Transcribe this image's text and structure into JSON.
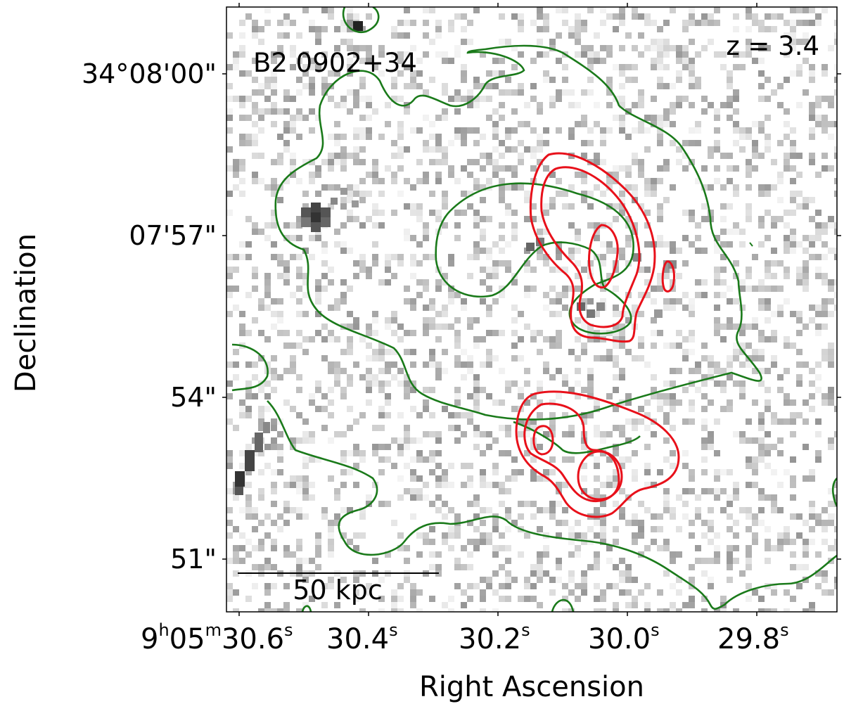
{
  "figure": {
    "object_label": "B2 0902+34",
    "redshift_label": "z = 3.4",
    "scalebar_label": "50 kpc",
    "xlabel": "Right Ascension",
    "ylabel": "Declination",
    "x_ticks": [
      {
        "h": "9",
        "hs": "h",
        "m": "05",
        "ms": "m",
        "s": "30.6",
        "ss": "s"
      },
      {
        "s": "30.4",
        "ss": "s"
      },
      {
        "s": "30.2",
        "ss": "s"
      },
      {
        "s": "30.0",
        "ss": "s"
      },
      {
        "s": "29.8",
        "ss": "s"
      }
    ],
    "y_ticks": [
      "34°08'00\"",
      "07'57\"",
      "54\"",
      "51\""
    ],
    "colors": {
      "contour_green": "#1a7a1a",
      "contour_red": "#e8101a",
      "frame": "#000000",
      "background": "#ffffff"
    }
  }
}
